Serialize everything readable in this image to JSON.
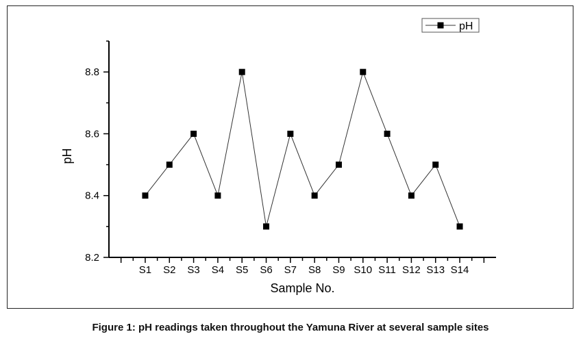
{
  "chart_data": {
    "type": "line",
    "title": "",
    "xlabel": "Sample No.",
    "ylabel": "pH",
    "categories": [
      "S1",
      "S2",
      "S3",
      "S4",
      "S5",
      "S6",
      "S7",
      "S8",
      "S9",
      "S10",
      "S11",
      "S12",
      "S13",
      "S14"
    ],
    "series": [
      {
        "name": "pH",
        "values": [
          8.4,
          8.5,
          8.6,
          8.4,
          8.8,
          8.3,
          8.6,
          8.4,
          8.5,
          8.8,
          8.6,
          8.4,
          8.5,
          8.3
        ]
      }
    ],
    "ylim": [
      8.2,
      8.9
    ],
    "xlim": [
      -0.5,
      15.5
    ],
    "yticks": [
      8.2,
      8.4,
      8.6,
      8.8
    ],
    "ytick_labels": [
      "8.2",
      "8.4",
      "8.6",
      "8.8"
    ],
    "grid": false,
    "legend": {
      "position": "top-right",
      "entries": [
        "pH"
      ]
    },
    "colors": {
      "line": "#333333",
      "marker": "#000000"
    }
  },
  "caption": "Figure 1: pH readings taken throughout the Yamuna River at several sample sites"
}
